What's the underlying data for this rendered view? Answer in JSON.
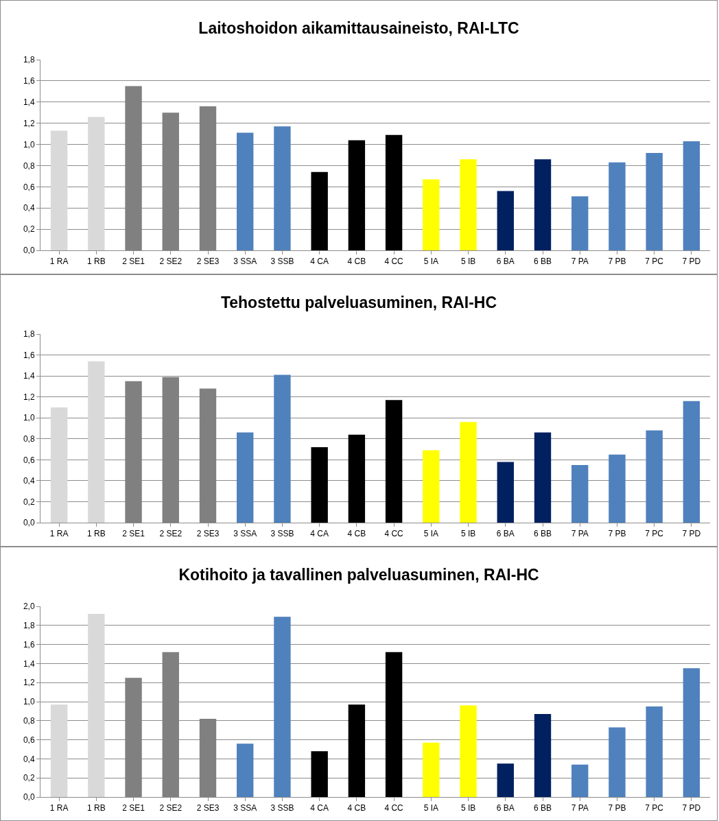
{
  "chart_data": [
    {
      "type": "bar",
      "title": "Laitoshoidon aikamittausaineisto, RAI-LTC",
      "categories": [
        "1 RA",
        "1 RB",
        "2 SE1",
        "2 SE2",
        "2 SE3",
        "3 SSA",
        "3 SSB",
        "4 CA",
        "4 CB",
        "4 CC",
        "5 IA",
        "5 IB",
        "6 BA",
        "6 BB",
        "7 PA",
        "7 PB",
        "7 PC",
        "7 PD"
      ],
      "values": [
        1.13,
        1.26,
        1.55,
        1.3,
        1.36,
        1.11,
        1.17,
        0.74,
        1.04,
        1.09,
        0.67,
        0.86,
        0.56,
        0.86,
        0.51,
        0.83,
        0.92,
        1.03
      ],
      "colors": [
        "#d9d9d9",
        "#d9d9d9",
        "#808080",
        "#808080",
        "#808080",
        "#4f81bd",
        "#4f81bd",
        "#000000",
        "#000000",
        "#000000",
        "#ffff00",
        "#ffff00",
        "#002060",
        "#002060",
        "#4f81bd",
        "#4f81bd",
        "#4f81bd",
        "#4f81bd"
      ],
      "ylim": [
        0,
        1.8
      ],
      "yticks": [
        {
          "value": 0,
          "label": "0,0"
        },
        {
          "value": 0.2,
          "label": "0,2"
        },
        {
          "value": 0.4,
          "label": "0,4"
        },
        {
          "value": 0.6,
          "label": "0,6"
        },
        {
          "value": 0.8,
          "label": "0,8"
        },
        {
          "value": 1,
          "label": "1,0"
        },
        {
          "value": 1.2,
          "label": "1,2"
        },
        {
          "value": 1.4,
          "label": "1,4"
        },
        {
          "value": 1.6,
          "label": "1,6"
        },
        {
          "value": 1.8,
          "label": "1,8"
        }
      ],
      "grid": "y"
    },
    {
      "type": "bar",
      "title": "Tehostettu palveluasuminen, RAI-HC",
      "categories": [
        "1 RA",
        "1 RB",
        "2 SE1",
        "2 SE2",
        "2 SE3",
        "3 SSA",
        "3 SSB",
        "4 CA",
        "4 CB",
        "4 CC",
        "5 IA",
        "5 IB",
        "6 BA",
        "6 BB",
        "7 PA",
        "7 PB",
        "7 PC",
        "7 PD"
      ],
      "values": [
        1.1,
        1.54,
        1.35,
        1.39,
        1.28,
        0.86,
        1.41,
        0.72,
        0.84,
        1.17,
        0.69,
        0.96,
        0.58,
        0.86,
        0.55,
        0.65,
        0.88,
        1.16
      ],
      "colors": [
        "#d9d9d9",
        "#d9d9d9",
        "#808080",
        "#808080",
        "#808080",
        "#4f81bd",
        "#4f81bd",
        "#000000",
        "#000000",
        "#000000",
        "#ffff00",
        "#ffff00",
        "#002060",
        "#002060",
        "#4f81bd",
        "#4f81bd",
        "#4f81bd",
        "#4f81bd"
      ],
      "ylim": [
        0,
        1.8
      ],
      "yticks": [
        {
          "value": 0,
          "label": "0,0"
        },
        {
          "value": 0.2,
          "label": "0,2"
        },
        {
          "value": 0.4,
          "label": "0,4"
        },
        {
          "value": 0.6,
          "label": "0,6"
        },
        {
          "value": 0.8,
          "label": "0,8"
        },
        {
          "value": 1,
          "label": "1,0"
        },
        {
          "value": 1.2,
          "label": "1,2"
        },
        {
          "value": 1.4,
          "label": "1,4"
        },
        {
          "value": 1.6,
          "label": "1,6"
        },
        {
          "value": 1.8,
          "label": "1,8"
        }
      ],
      "grid": "y"
    },
    {
      "type": "bar",
      "title": "Kotihoito ja tavallinen palveluasuminen, RAI-HC",
      "categories": [
        "1 RA",
        "1 RB",
        "2 SE1",
        "2 SE2",
        "2 SE3",
        "3 SSA",
        "3 SSB",
        "4 CA",
        "4 CB",
        "4 CC",
        "5 IA",
        "5 IB",
        "6 BA",
        "6 BB",
        "7 PA",
        "7 PB",
        "7 PC",
        "7 PD"
      ],
      "values": [
        0.97,
        1.92,
        1.25,
        1.52,
        0.82,
        0.56,
        1.89,
        0.48,
        0.97,
        1.52,
        0.57,
        0.96,
        0.35,
        0.87,
        0.34,
        0.73,
        0.95,
        1.35
      ],
      "colors": [
        "#d9d9d9",
        "#d9d9d9",
        "#808080",
        "#808080",
        "#808080",
        "#4f81bd",
        "#4f81bd",
        "#000000",
        "#000000",
        "#000000",
        "#ffff00",
        "#ffff00",
        "#002060",
        "#002060",
        "#4f81bd",
        "#4f81bd",
        "#4f81bd",
        "#4f81bd"
      ],
      "ylim": [
        0,
        2
      ],
      "yticks": [
        {
          "value": 0,
          "label": "0,0"
        },
        {
          "value": 0.2,
          "label": "0,2"
        },
        {
          "value": 0.4,
          "label": "0,4"
        },
        {
          "value": 0.6,
          "label": "0,6"
        },
        {
          "value": 0.8,
          "label": "0,8"
        },
        {
          "value": 1,
          "label": "1,0"
        },
        {
          "value": 1.2,
          "label": "1,2"
        },
        {
          "value": 1.4,
          "label": "1,4"
        },
        {
          "value": 1.6,
          "label": "1,6"
        },
        {
          "value": 1.8,
          "label": "1,8"
        },
        {
          "value": 2,
          "label": "2,0"
        }
      ],
      "grid": "y"
    }
  ]
}
